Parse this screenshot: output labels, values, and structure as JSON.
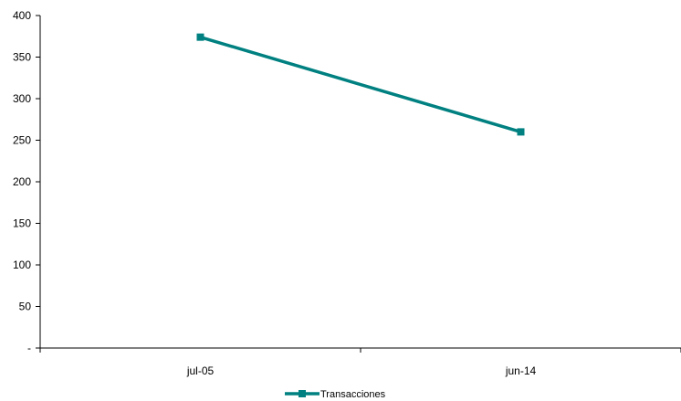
{
  "chart_data": {
    "type": "line",
    "title": "",
    "xlabel": "",
    "ylabel": "",
    "categories": [
      "jul-05",
      "jun-14"
    ],
    "series": [
      {
        "name": "Transacciones",
        "values": [
          374,
          260
        ],
        "color": "#008080",
        "marker": "square"
      }
    ],
    "ylim": [
      0,
      400
    ],
    "yticks": [
      0,
      50,
      100,
      150,
      200,
      250,
      300,
      350,
      400
    ],
    "ytick_labels": [
      "-",
      "50",
      "100",
      "150",
      "200",
      "250",
      "300",
      "350",
      "400"
    ],
    "grid": false,
    "legend_position": "bottom"
  }
}
